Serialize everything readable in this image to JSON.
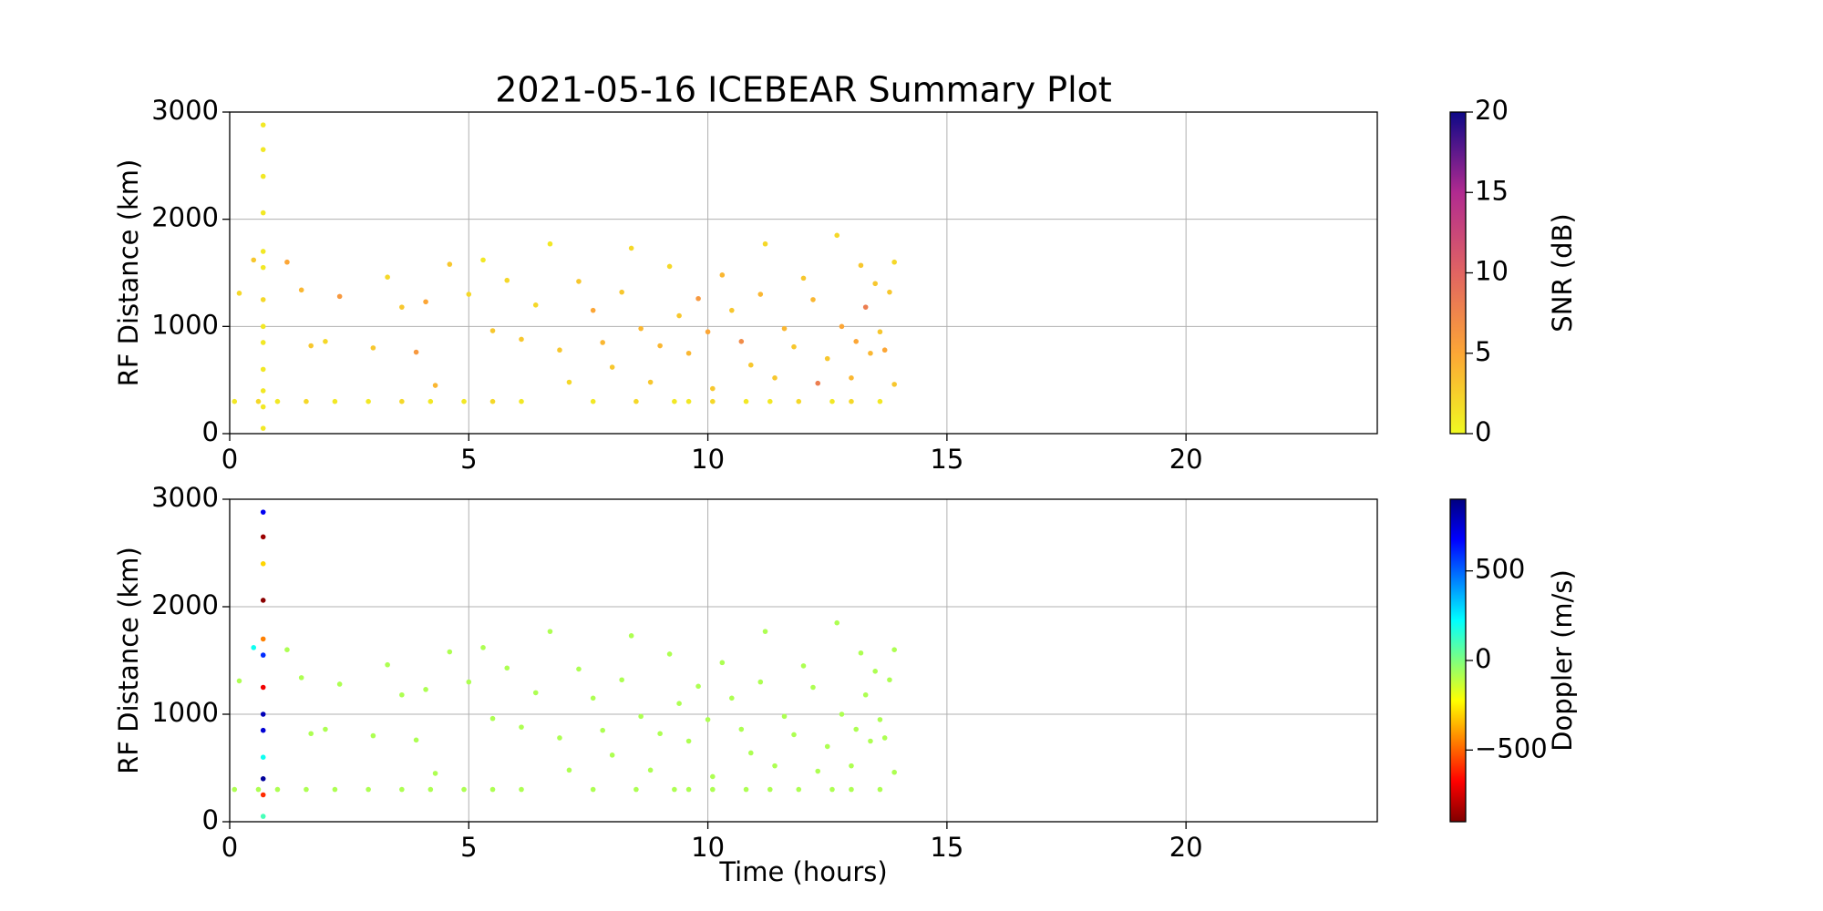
{
  "chart_data": [
    {
      "type": "scatter",
      "title": "2021-05-16 ICEBEAR Summary Plot",
      "ylabel": "RF Distance (km)",
      "x": [
        0.1,
        0.6,
        1.0,
        1.6,
        2.2,
        2.9,
        3.6,
        4.2,
        4.9,
        5.5,
        6.1,
        7.6,
        8.5,
        9.3,
        9.6,
        10.1,
        10.8,
        11.3,
        11.9,
        12.6,
        13.0,
        13.6,
        0.7,
        0.7,
        0.7,
        0.7,
        0.7,
        0.7,
        0.7,
        0.7,
        0.7,
        0.7,
        0.7,
        0.7,
        0.7,
        0.2,
        0.5,
        1.2,
        1.5,
        1.7,
        2.3,
        2.0,
        3.0,
        3.3,
        3.6,
        3.9,
        4.1,
        4.3,
        4.6,
        5.0,
        5.3,
        5.5,
        5.8,
        6.1,
        6.4,
        6.7,
        6.9,
        7.1,
        7.3,
        7.6,
        7.8,
        8.0,
        8.2,
        8.4,
        8.6,
        8.8,
        9.0,
        9.2,
        9.4,
        9.6,
        9.8,
        10.0,
        10.1,
        10.3,
        10.5,
        10.7,
        10.9,
        11.1,
        11.2,
        11.4,
        11.6,
        11.8,
        12.0,
        12.2,
        12.3,
        12.5,
        12.7,
        12.8,
        13.0,
        13.1,
        13.2,
        13.3,
        13.4,
        13.5,
        13.6,
        13.7,
        13.8,
        13.9,
        13.9
      ],
      "values": [
        300,
        300,
        300,
        300,
        300,
        300,
        300,
        300,
        300,
        300,
        300,
        300,
        300,
        300,
        300,
        300,
        300,
        300,
        300,
        300,
        300,
        300,
        2880,
        2650,
        2400,
        2060,
        1700,
        1550,
        1250,
        1000,
        850,
        600,
        400,
        250,
        50,
        1310,
        1620,
        1600,
        1340,
        820,
        1280,
        860,
        800,
        1460,
        1180,
        760,
        1230,
        450,
        1580,
        1300,
        1620,
        960,
        1430,
        880,
        1200,
        1770,
        780,
        480,
        1420,
        1150,
        850,
        620,
        1320,
        1730,
        980,
        480,
        820,
        1560,
        1100,
        750,
        1260,
        950,
        420,
        1480,
        1150,
        860,
        640,
        1300,
        1770,
        520,
        980,
        810,
        1450,
        1250,
        470,
        700,
        1850,
        1000,
        520,
        860,
        1570,
        1180,
        750,
        1400,
        950,
        780,
        1320,
        460,
        1600
      ],
      "color_values": [
        1,
        2,
        1,
        2,
        1,
        1,
        2,
        1,
        1,
        2,
        1,
        1,
        2,
        1,
        1,
        2,
        1,
        1,
        2,
        1,
        2,
        1,
        1,
        1,
        1,
        1,
        1,
        1,
        2,
        1,
        1,
        1,
        1,
        1,
        1,
        2,
        3,
        5,
        4,
        3,
        6,
        2,
        3,
        2,
        3,
        6,
        5,
        4,
        3,
        2,
        1,
        3,
        2,
        3,
        2,
        1,
        3,
        2,
        3,
        5,
        4,
        3,
        3,
        2,
        4,
        3,
        4,
        2,
        3,
        4,
        6,
        5,
        3,
        4,
        3,
        7,
        3,
        4,
        2,
        3,
        4,
        3,
        3,
        4,
        8,
        3,
        2,
        5,
        4,
        5,
        3,
        8,
        4,
        3,
        3,
        5,
        3,
        3,
        2
      ],
      "colorbar": {
        "label": "SNR (dB)",
        "lim": [
          0,
          20
        ],
        "ticks": [
          0,
          5,
          10,
          15,
          20
        ],
        "colormap": [
          "#f0f921",
          "#fca636",
          "#e16462",
          "#b12a90",
          "#0d0887"
        ]
      },
      "xlim": [
        0,
        24
      ],
      "xticks": [
        0,
        5,
        10,
        15,
        20
      ],
      "ylim": [
        0,
        3000
      ],
      "yticks": [
        0,
        1000,
        2000,
        3000
      ],
      "grid": true
    },
    {
      "type": "scatter",
      "xlabel": "Time (hours)",
      "ylabel": "RF Distance (km)",
      "x": [
        0.1,
        0.6,
        1.0,
        1.6,
        2.2,
        2.9,
        3.6,
        4.2,
        4.9,
        5.5,
        6.1,
        7.6,
        8.5,
        9.3,
        9.6,
        10.1,
        10.8,
        11.3,
        11.9,
        12.6,
        13.0,
        13.6,
        0.7,
        0.7,
        0.7,
        0.7,
        0.7,
        0.7,
        0.7,
        0.7,
        0.7,
        0.7,
        0.7,
        0.7,
        0.7,
        0.2,
        0.5,
        1.2,
        1.5,
        1.7,
        2.3,
        2.0,
        3.0,
        3.3,
        3.6,
        3.9,
        4.1,
        4.3,
        4.6,
        5.0,
        5.3,
        5.5,
        5.8,
        6.1,
        6.4,
        6.7,
        6.9,
        7.1,
        7.3,
        7.6,
        7.8,
        8.0,
        8.2,
        8.4,
        8.6,
        8.8,
        9.0,
        9.2,
        9.4,
        9.6,
        9.8,
        10.0,
        10.1,
        10.3,
        10.5,
        10.7,
        10.9,
        11.1,
        11.2,
        11.4,
        11.6,
        11.8,
        12.0,
        12.2,
        12.3,
        12.5,
        12.7,
        12.8,
        13.0,
        13.1,
        13.2,
        13.3,
        13.4,
        13.5,
        13.6,
        13.7,
        13.8,
        13.9,
        13.9
      ],
      "values": [
        300,
        300,
        300,
        300,
        300,
        300,
        300,
        300,
        300,
        300,
        300,
        300,
        300,
        300,
        300,
        300,
        300,
        300,
        300,
        300,
        300,
        300,
        2880,
        2650,
        2400,
        2060,
        1700,
        1550,
        1250,
        1000,
        850,
        600,
        400,
        250,
        50,
        1310,
        1620,
        1600,
        1340,
        820,
        1280,
        860,
        800,
        1460,
        1180,
        760,
        1230,
        450,
        1580,
        1300,
        1620,
        960,
        1430,
        880,
        1200,
        1770,
        780,
        480,
        1420,
        1150,
        850,
        620,
        1320,
        1730,
        980,
        480,
        820,
        1560,
        1100,
        750,
        1260,
        950,
        420,
        1480,
        1150,
        860,
        640,
        1300,
        1770,
        520,
        980,
        810,
        1450,
        1250,
        470,
        700,
        1850,
        1000,
        520,
        860,
        1570,
        1180,
        750,
        1400,
        950,
        780,
        1320,
        460,
        1600
      ],
      "color_values": [
        -80,
        -80,
        -80,
        -80,
        -80,
        -80,
        -80,
        -80,
        -80,
        -80,
        -80,
        -80,
        -80,
        -80,
        -80,
        -80,
        -80,
        -80,
        -80,
        -80,
        -80,
        -80,
        700,
        -850,
        -300,
        -880,
        -450,
        600,
        -700,
        800,
        750,
        200,
        850,
        -600,
        100,
        -80,
        200,
        -80,
        -80,
        -80,
        -80,
        -80,
        -80,
        -80,
        -80,
        -80,
        -80,
        -80,
        -80,
        -80,
        -80,
        -80,
        -80,
        -80,
        -80,
        -80,
        -80,
        -80,
        -80,
        -80,
        -80,
        -80,
        -80,
        -80,
        -80,
        -80,
        -80,
        -80,
        -80,
        -80,
        -80,
        -80,
        -80,
        -80,
        -80,
        -80,
        -80,
        -80,
        -80,
        -80,
        -80,
        -80,
        -80,
        -80,
        -80,
        -80,
        -80,
        -80,
        -80,
        -80,
        -80,
        -80,
        -80,
        -80,
        -80,
        -80,
        -80,
        -80,
        -80
      ],
      "colorbar": {
        "label": "Doppler (m/s)",
        "lim": [
          -900,
          900
        ],
        "ticks": [
          {
            "value": -500,
            "label": "−500"
          },
          0,
          500
        ],
        "colormap": [
          "#7f0000",
          "#ff0000",
          "#ff8000",
          "#ffff00",
          "#7fff7f",
          "#00ffff",
          "#0080ff",
          "#0000ff",
          "#00007f"
        ]
      },
      "xlim": [
        0,
        24
      ],
      "xticks": [
        0,
        5,
        10,
        15,
        20
      ],
      "ylim": [
        0,
        3000
      ],
      "yticks": [
        0,
        1000,
        2000,
        3000
      ],
      "grid": true
    }
  ]
}
